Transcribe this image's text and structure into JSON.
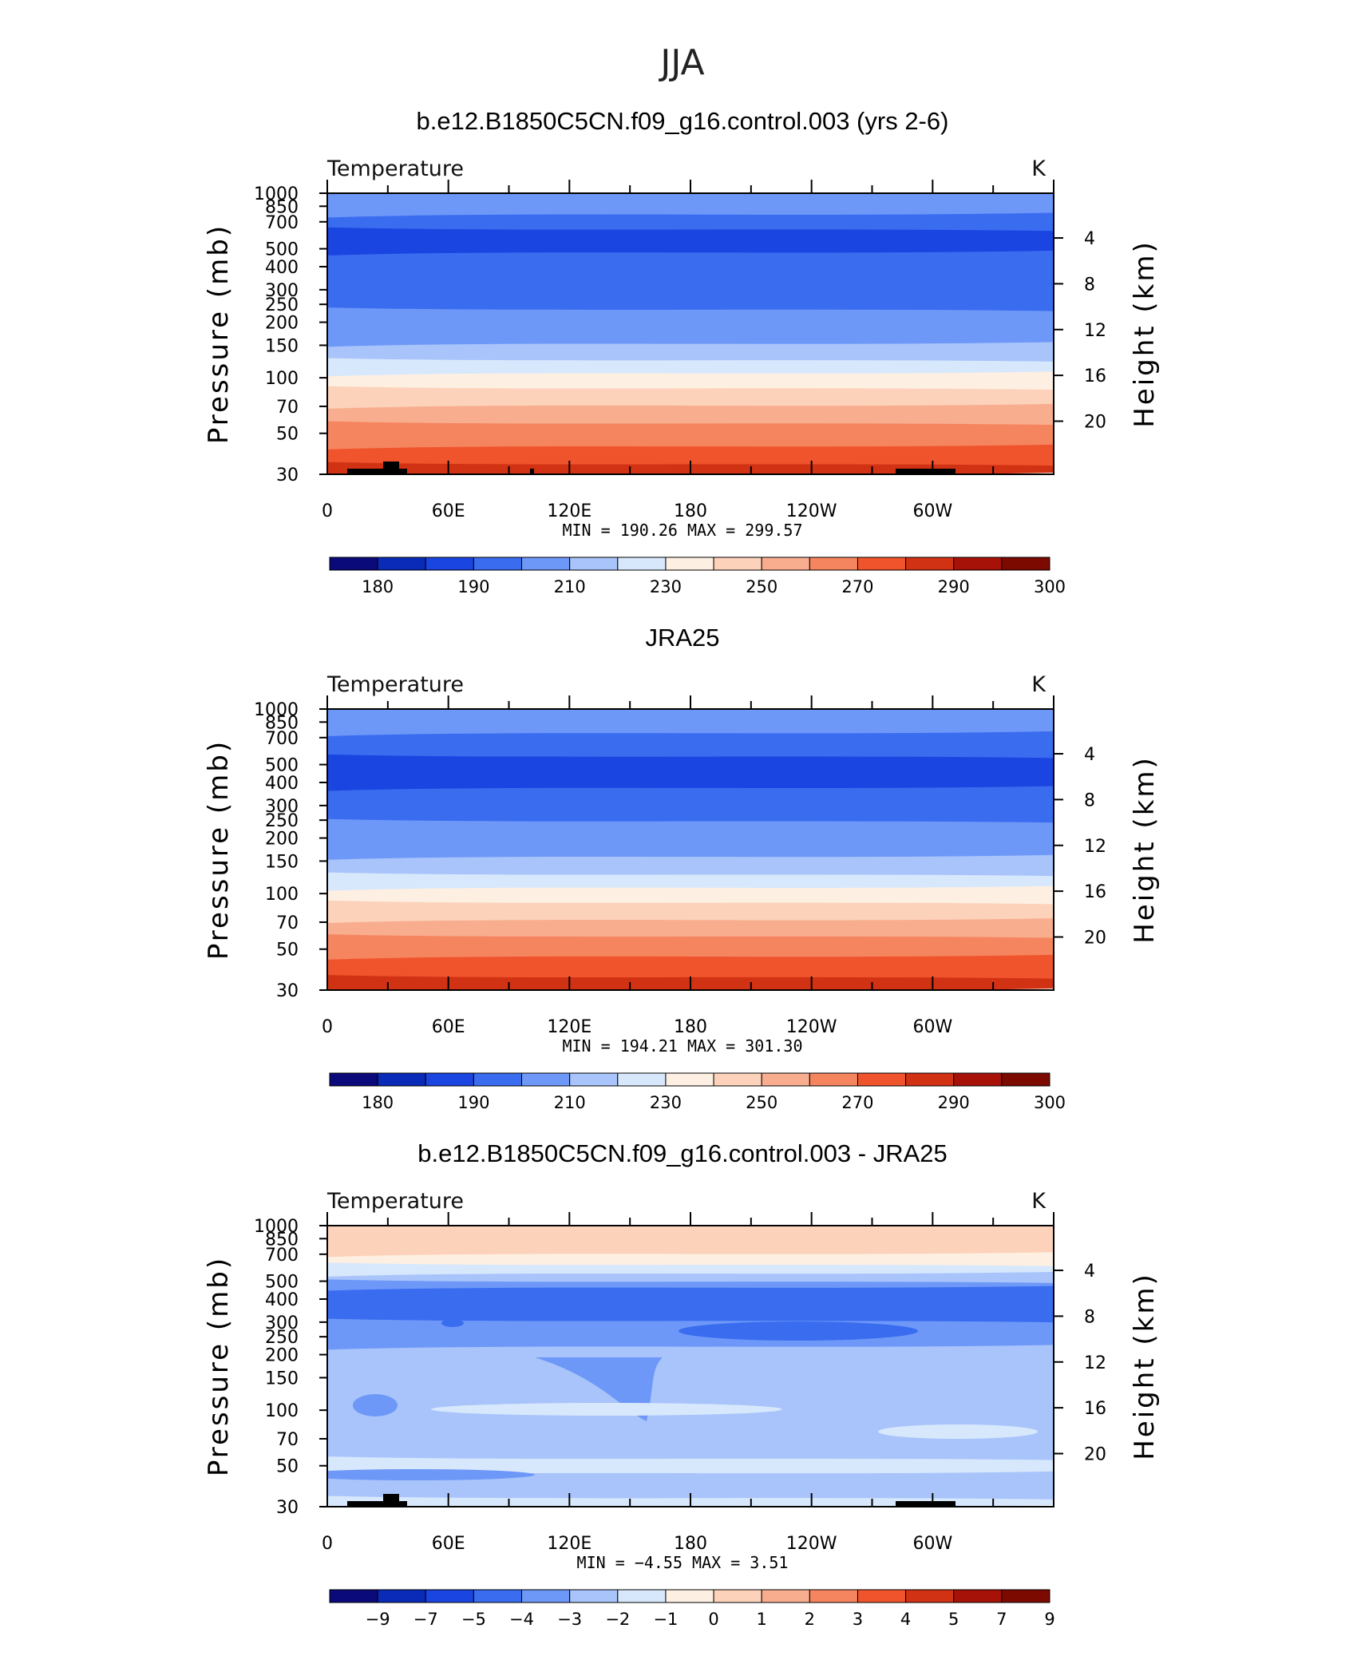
{
  "figure_title": "JJA",
  "colors": {
    "ramp": [
      "#0a0a7a",
      "#0a2ab8",
      "#1a45e0",
      "#3a6cf0",
      "#6e98f8",
      "#a8c4fa",
      "#d8e8fc",
      "#fdefe2",
      "#fcd2bb",
      "#f8ad8f",
      "#f5855f",
      "#f0542c",
      "#d23214",
      "#a61208",
      "#7c0a00"
    ],
    "land": "#000000"
  },
  "chart_data": [
    {
      "type": "contour",
      "title": "b.e12.B1850C5CN.f09_g16.control.003 (yrs 2-6)",
      "left_label": "Temperature",
      "units": "K",
      "ylabel": "Pressure  (mb)",
      "y2label": "Height  (km)",
      "xticks": [
        "0",
        "60E",
        "120E",
        "180",
        "120W",
        "60W"
      ],
      "xlim": [
        0,
        360
      ],
      "yticks": [
        "30",
        "50",
        "70",
        "100",
        "150",
        "200",
        "250",
        "300",
        "400",
        "500",
        "700",
        "850",
        "1000"
      ],
      "ylim": [
        1000,
        30
      ],
      "y2ticks": [
        "4",
        "8",
        "12",
        "16",
        "20"
      ],
      "min_label": "MIN =",
      "min_value": "190.26",
      "max_label": "MAX =",
      "max_value": "299.57",
      "colorbar_labels": [
        "180",
        "190",
        "210",
        "230",
        "250",
        "270",
        "290",
        "300"
      ]
    },
    {
      "type": "contour",
      "title": "JRA25",
      "left_label": "Temperature",
      "units": "K",
      "ylabel": "Pressure  (mb)",
      "y2label": "Height  (km)",
      "xticks": [
        "0",
        "60E",
        "120E",
        "180",
        "120W",
        "60W"
      ],
      "xlim": [
        0,
        360
      ],
      "yticks": [
        "30",
        "50",
        "70",
        "100",
        "150",
        "200",
        "250",
        "300",
        "400",
        "500",
        "700",
        "850",
        "1000"
      ],
      "ylim": [
        1000,
        30
      ],
      "y2ticks": [
        "4",
        "8",
        "12",
        "16",
        "20"
      ],
      "min_label": "MIN =",
      "min_value": "194.21",
      "max_label": "MAX =",
      "max_value": "301.30",
      "colorbar_labels": [
        "180",
        "190",
        "210",
        "230",
        "250",
        "270",
        "290",
        "300"
      ]
    },
    {
      "type": "contour",
      "title": "b.e12.B1850C5CN.f09_g16.control.003 - JRA25",
      "left_label": "Temperature",
      "units": "K",
      "ylabel": "Pressure  (mb)",
      "y2label": "Height  (km)",
      "xticks": [
        "0",
        "60E",
        "120E",
        "180",
        "120W",
        "60W"
      ],
      "xlim": [
        0,
        360
      ],
      "yticks": [
        "30",
        "50",
        "70",
        "100",
        "150",
        "200",
        "250",
        "300",
        "400",
        "500",
        "700",
        "850",
        "1000"
      ],
      "ylim": [
        1000,
        30
      ],
      "y2ticks": [
        "4",
        "8",
        "12",
        "16",
        "20"
      ],
      "min_label": "MIN =",
      "min_value": "−4.55",
      "max_label": "MAX =",
      "max_value": "3.51",
      "colorbar_labels": [
        "−9",
        "−7",
        "−5",
        "−4",
        "−3",
        "−2",
        "−1",
        "0",
        "1",
        "2",
        "3",
        "4",
        "5",
        "7",
        "9"
      ]
    }
  ]
}
